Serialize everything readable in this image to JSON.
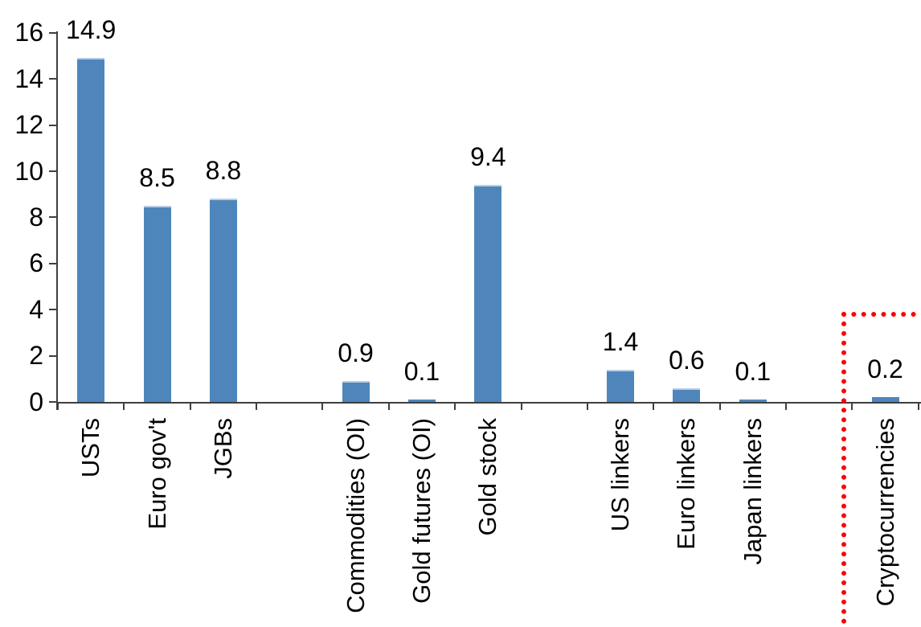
{
  "chart_data": {
    "type": "bar",
    "title": "",
    "xlabel": "",
    "ylabel": "",
    "categories": [
      "USTs",
      "Euro gov't",
      "JGBs",
      "",
      "Commodities (OI)",
      "Gold futures (OI)",
      "Gold stock",
      "",
      "US linkers",
      "Euro linkers",
      "Japan linkers",
      "",
      "Cryptocurrencies"
    ],
    "values": [
      14.9,
      8.5,
      8.8,
      null,
      0.9,
      0.1,
      9.4,
      null,
      1.4,
      0.6,
      0.1,
      null,
      0.2
    ],
    "data_labels": [
      "14.9",
      "8.5",
      "8.8",
      "",
      "0.9",
      "0.1",
      "9.4",
      "",
      "1.4",
      "0.6",
      "0.1",
      "",
      "0.2"
    ],
    "y_ticks": [
      0,
      2,
      4,
      6,
      8,
      10,
      12,
      14,
      16
    ],
    "y_tick_labels": [
      "0",
      "2",
      "4",
      "6",
      "8",
      "10",
      "12",
      "14",
      "16"
    ],
    "ylim": [
      0,
      16
    ],
    "grid": "off",
    "legend": "none",
    "bar_color": "#4E86BC",
    "bar_top_edge_color": "#B7CFE6",
    "axis_color": "#3f3f3f",
    "label_color": "#000000",
    "highlight": {
      "category": "Cryptocurrencies",
      "box_color": "#FF0000",
      "box_style": "dotted"
    }
  }
}
